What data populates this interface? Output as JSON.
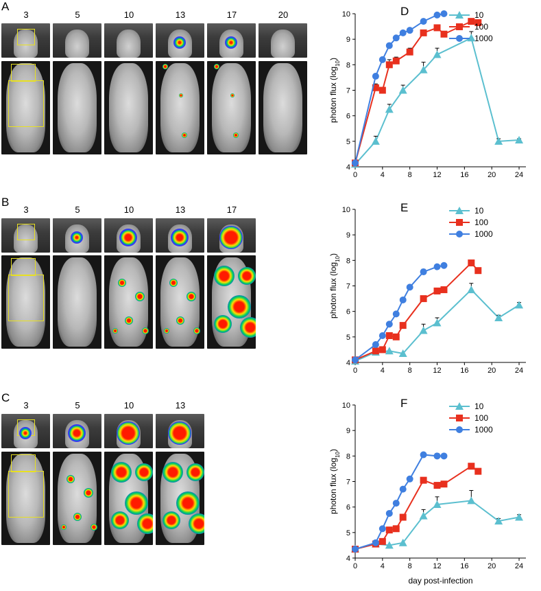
{
  "panels": {
    "A": {
      "letter": "A",
      "days": [
        "3",
        "5",
        "10",
        "13",
        "17",
        "20"
      ]
    },
    "B": {
      "letter": "B",
      "days": [
        "3",
        "5",
        "10",
        "13",
        "17"
      ]
    },
    "C": {
      "letter": "C",
      "days": [
        "3",
        "5",
        "10",
        "13"
      ]
    },
    "D": {
      "letter": "D"
    },
    "E": {
      "letter": "E"
    },
    "F": {
      "letter": "F"
    }
  },
  "colors": {
    "series_10": "#5bbfcf",
    "series_100": "#e8301e",
    "series_1000": "#3f7fe0"
  },
  "chart_data": [
    {
      "panel": "D",
      "type": "line",
      "xlabel": "",
      "ylabel": "photon flux (log10)",
      "xlim": [
        0,
        25
      ],
      "ylim": [
        4,
        10
      ],
      "xticks": [
        0,
        4,
        8,
        12,
        16,
        20,
        24
      ],
      "yticks": [
        4,
        5,
        6,
        7,
        8,
        9,
        10
      ],
      "legend_position": "top-right",
      "series": [
        {
          "name": "10",
          "marker": "triangle",
          "x": [
            0,
            3,
            5,
            7,
            10,
            12,
            17,
            21,
            24
          ],
          "y": [
            4.1,
            5.0,
            6.25,
            7.0,
            7.8,
            8.4,
            9.05,
            5.0,
            5.05
          ],
          "err": [
            0,
            0.2,
            0.2,
            0.2,
            0.3,
            0.25,
            0.25,
            0.1,
            0.05
          ]
        },
        {
          "name": "100",
          "marker": "square",
          "x": [
            0,
            3,
            4,
            5,
            6,
            8,
            10,
            12,
            13,
            17,
            18
          ],
          "y": [
            4.15,
            7.1,
            7.0,
            8.0,
            8.15,
            8.5,
            9.25,
            9.45,
            9.2,
            9.7,
            9.65
          ],
          "err": [
            0,
            0.15,
            0,
            0.2,
            0.15,
            0.15,
            0.1,
            0.1,
            0,
            0,
            0
          ]
        },
        {
          "name": "1000",
          "marker": "circle",
          "x": [
            0,
            3,
            4,
            5,
            6,
            7,
            8,
            10,
            12,
            13
          ],
          "y": [
            4.15,
            7.55,
            8.2,
            8.75,
            9.05,
            9.25,
            9.35,
            9.7,
            9.95,
            10.0
          ],
          "err": [
            0,
            0,
            0,
            0,
            0,
            0,
            0,
            0,
            0,
            0
          ]
        }
      ]
    },
    {
      "panel": "E",
      "type": "line",
      "xlabel": "",
      "ylabel": "photon flux (log10)",
      "xlim": [
        0,
        25
      ],
      "ylim": [
        4,
        10
      ],
      "xticks": [
        0,
        4,
        8,
        12,
        16,
        20,
        24
      ],
      "yticks": [
        4,
        5,
        6,
        7,
        8,
        9,
        10
      ],
      "legend_position": "top-right",
      "series": [
        {
          "name": "10",
          "marker": "triangle",
          "x": [
            0,
            3,
            5,
            7,
            10,
            12,
            17,
            21,
            24
          ],
          "y": [
            4.05,
            4.4,
            4.45,
            4.35,
            5.25,
            5.55,
            6.85,
            5.75,
            6.25
          ],
          "err": [
            0,
            0,
            0,
            0,
            0.25,
            0.2,
            0.25,
            0.1,
            0.1
          ]
        },
        {
          "name": "100",
          "marker": "square",
          "x": [
            0,
            3,
            4,
            5,
            6,
            7,
            10,
            12,
            13,
            17,
            18
          ],
          "y": [
            4.1,
            4.45,
            4.5,
            5.05,
            5.0,
            5.45,
            6.5,
            6.8,
            6.85,
            7.9,
            7.6
          ],
          "err": [
            0,
            0,
            0,
            0,
            0.1,
            0.1,
            0.1,
            0.1,
            0,
            0,
            0
          ]
        },
        {
          "name": "1000",
          "marker": "circle",
          "x": [
            0,
            3,
            4,
            5,
            6,
            7,
            8,
            10,
            12,
            13
          ],
          "y": [
            4.1,
            4.7,
            5.05,
            5.5,
            5.9,
            6.45,
            6.95,
            7.55,
            7.75,
            7.8
          ],
          "err": [
            0,
            0,
            0,
            0,
            0,
            0,
            0,
            0.1,
            0,
            0
          ]
        }
      ]
    },
    {
      "panel": "F",
      "type": "line",
      "xlabel": "day post-infection",
      "ylabel": "photon flux (log10)",
      "xlim": [
        0,
        25
      ],
      "ylim": [
        4,
        10
      ],
      "xticks": [
        0,
        4,
        8,
        12,
        16,
        20,
        24
      ],
      "yticks": [
        4,
        5,
        6,
        7,
        8,
        9,
        10
      ],
      "legend_position": "top-right",
      "series": [
        {
          "name": "10",
          "marker": "triangle",
          "x": [
            0,
            3,
            5,
            7,
            10,
            12,
            17,
            21,
            24
          ],
          "y": [
            4.35,
            4.55,
            4.5,
            4.6,
            5.65,
            6.1,
            6.25,
            5.45,
            5.6
          ],
          "err": [
            0,
            0,
            0,
            0,
            0.25,
            0.3,
            0.4,
            0.1,
            0.1
          ]
        },
        {
          "name": "100",
          "marker": "square",
          "x": [
            0,
            3,
            4,
            5,
            6,
            7,
            10,
            12,
            13,
            17,
            18
          ],
          "y": [
            4.35,
            4.55,
            4.65,
            5.1,
            5.15,
            5.6,
            7.05,
            6.85,
            6.9,
            7.6,
            7.4
          ],
          "err": [
            0,
            0,
            0,
            0,
            0.1,
            0.1,
            0.1,
            0.1,
            0,
            0,
            0
          ]
        },
        {
          "name": "1000",
          "marker": "circle",
          "x": [
            0,
            3,
            4,
            5,
            6,
            7,
            8,
            10,
            12,
            13
          ],
          "y": [
            4.35,
            4.6,
            5.15,
            5.75,
            6.15,
            6.7,
            7.1,
            8.05,
            8.0,
            8.0
          ],
          "err": [
            0,
            0,
            0,
            0,
            0,
            0,
            0,
            0.05,
            0.1,
            0
          ]
        }
      ]
    }
  ]
}
